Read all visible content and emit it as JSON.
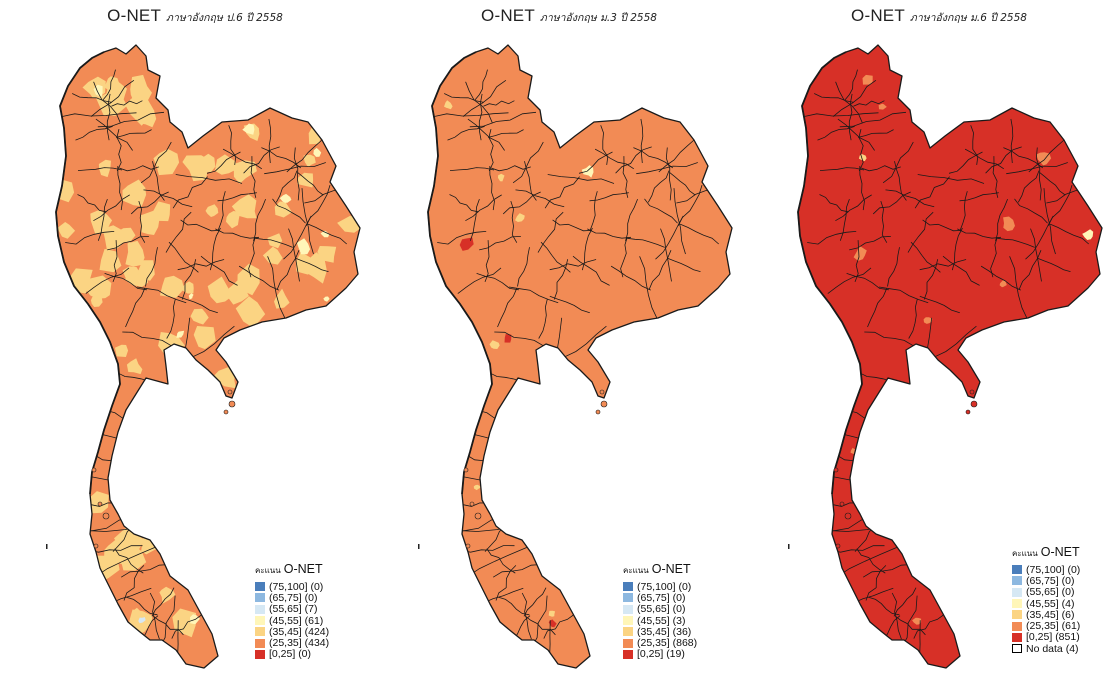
{
  "colors": {
    "c_75_100": "#4a7ebb",
    "c_65_75": "#8db8e0",
    "c_55_65": "#d6e8f4",
    "c_45_55": "#fff6b8",
    "c_35_45": "#fbd483",
    "c_25_35": "#f28b55",
    "c_0_25": "#d73027",
    "no_data": "#ffffff",
    "boundary": "#1a1a1a"
  },
  "panels": [
    {
      "title_main": "O-NET",
      "title_sub": "ภาษาอังกฤษ ป.6 ปี 2558",
      "base_fill": "c_25_35",
      "patches": [
        {
          "fill": "c_35_45",
          "share": 0.49
        },
        {
          "fill": "c_45_55",
          "share": 0.07
        },
        {
          "fill": "c_55_65",
          "share": 0.01
        }
      ],
      "legend_title_pre": "คะแนน",
      "legend_title": "O-NET",
      "legend": [
        {
          "label": "(75,100] (0)",
          "color": "c_75_100"
        },
        {
          "label": "(65,75] (0)",
          "color": "c_65_75"
        },
        {
          "label": "(55,65] (7)",
          "color": "c_55_65"
        },
        {
          "label": "(45,55] (61)",
          "color": "c_45_55"
        },
        {
          "label": "(35,45] (424)",
          "color": "c_35_45"
        },
        {
          "label": "(25,35] (434)",
          "color": "c_25_35"
        },
        {
          "label": "[0,25] (0)",
          "color": "c_0_25"
        }
      ]
    },
    {
      "title_main": "O-NET",
      "title_sub": "ภาษาอังกฤษ ม.3 ปี 2558",
      "base_fill": "c_25_35",
      "patches": [
        {
          "fill": "c_0_25",
          "share": 0.02
        },
        {
          "fill": "c_35_45",
          "share": 0.04
        },
        {
          "fill": "c_45_55",
          "share": 0.005
        }
      ],
      "legend_title_pre": "คะแนน",
      "legend_title": "O-NET",
      "legend": [
        {
          "label": "(75,100] (0)",
          "color": "c_75_100"
        },
        {
          "label": "(65,75] (0)",
          "color": "c_65_75"
        },
        {
          "label": "(55,65] (0)",
          "color": "c_55_65"
        },
        {
          "label": "(45,55] (3)",
          "color": "c_45_55"
        },
        {
          "label": "(35,45] (36)",
          "color": "c_35_45"
        },
        {
          "label": "(25,35] (868)",
          "color": "c_25_35"
        },
        {
          "label": "[0,25] (19)",
          "color": "c_0_25"
        }
      ]
    },
    {
      "title_main": "O-NET",
      "title_sub": "ภาษาอังกฤษ ม.6 ปี 2558",
      "base_fill": "c_0_25",
      "patches": [
        {
          "fill": "c_25_35",
          "share": 0.066
        },
        {
          "fill": "c_35_45",
          "share": 0.007
        },
        {
          "fill": "c_45_55",
          "share": 0.005
        }
      ],
      "legend_title_pre": "คะแนน",
      "legend_title": "O-NET",
      "legend": [
        {
          "label": "(75,100] (0)",
          "color": "c_75_100"
        },
        {
          "label": "(65,75] (0)",
          "color": "c_65_75"
        },
        {
          "label": "(55,65] (0)",
          "color": "c_55_65"
        },
        {
          "label": "(45,55] (4)",
          "color": "c_45_55"
        },
        {
          "label": "(35,45] (6)",
          "color": "c_35_45"
        },
        {
          "label": "(25,35] (61)",
          "color": "c_25_35"
        },
        {
          "label": "[0,25] (851)",
          "color": "c_0_25"
        },
        {
          "label": "No data (4)",
          "color": "no_data"
        }
      ]
    }
  ]
}
